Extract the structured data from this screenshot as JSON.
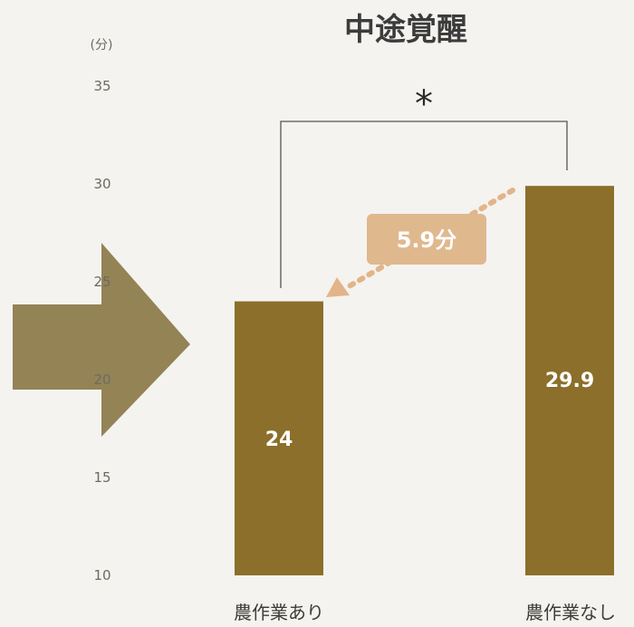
{
  "chart_data": {
    "type": "bar",
    "title": "中途覚醒",
    "unit_label": "(分)",
    "categories": [
      "農作業あり",
      "農作業なし"
    ],
    "values": [
      24,
      29.9
    ],
    "value_labels": [
      "24",
      "29.9"
    ],
    "ylim": [
      10,
      35
    ],
    "yticks": [
      10,
      15,
      20,
      25,
      30,
      35
    ],
    "grid": false,
    "legend": "none",
    "annotations": {
      "significance": "*",
      "difference": "5.9分"
    }
  },
  "colors": {
    "background": "#f4f3ef",
    "bar": "#8b6f2a",
    "arrow": "#8a7a48",
    "callout": "#dfb88e",
    "dotted_arrow": "#e3b48a",
    "bracket": "#555555"
  }
}
